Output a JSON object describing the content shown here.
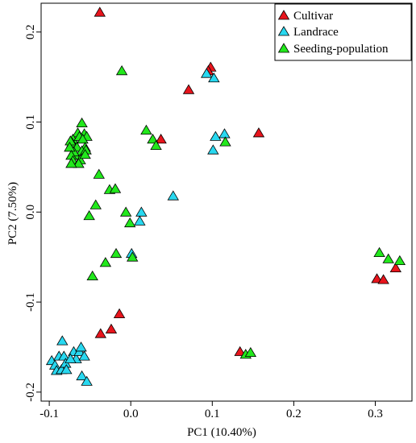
{
  "chart_data": {
    "type": "scatter",
    "xlabel": "PC1 (10.40%)",
    "ylabel": "PC2 (7.50%)",
    "xlim": [
      -0.11,
      0.345
    ],
    "ylim": [
      -0.21,
      0.232
    ],
    "xticks": [
      "-0.1",
      "0.0",
      "0.1",
      "0.2",
      "0.3"
    ],
    "yticks": [
      "-0.2",
      "-0.1",
      "0.0",
      "0.1",
      "0.2"
    ],
    "grid": false,
    "legend_position": "top-right",
    "marker": "triangle",
    "series": [
      {
        "name": "Cultivar",
        "color": "#e8141c",
        "points": [
          [
            -0.038,
            0.222
          ],
          [
            0.098,
            0.161
          ],
          [
            0.095,
            0.157
          ],
          [
            0.071,
            0.136
          ],
          [
            0.157,
            0.088
          ],
          [
            0.037,
            0.081
          ],
          [
            0.302,
            -0.074
          ],
          [
            0.31,
            -0.075
          ],
          [
            0.325,
            -0.062
          ],
          [
            -0.014,
            -0.113
          ],
          [
            -0.024,
            -0.13
          ],
          [
            -0.037,
            -0.135
          ],
          [
            0.134,
            -0.155
          ]
        ]
      },
      {
        "name": "Landrace",
        "color": "#28d8f0",
        "points": [
          [
            0.093,
            0.154
          ],
          [
            0.102,
            0.149
          ],
          [
            0.115,
            0.087
          ],
          [
            0.104,
            0.084
          ],
          [
            0.101,
            0.069
          ],
          [
            0.052,
            0.018
          ],
          [
            0.013,
            0.0
          ],
          [
            0.011,
            -0.01
          ],
          [
            0.001,
            -0.046
          ],
          [
            -0.084,
            -0.143
          ],
          [
            -0.097,
            -0.165
          ],
          [
            -0.093,
            -0.17
          ],
          [
            -0.091,
            -0.176
          ],
          [
            -0.088,
            -0.16
          ],
          [
            -0.085,
            -0.175
          ],
          [
            -0.082,
            -0.16
          ],
          [
            -0.08,
            -0.168
          ],
          [
            -0.079,
            -0.175
          ],
          [
            -0.07,
            -0.155
          ],
          [
            -0.067,
            -0.163
          ],
          [
            -0.063,
            -0.155
          ],
          [
            -0.061,
            -0.15
          ],
          [
            -0.057,
            -0.16
          ],
          [
            -0.06,
            -0.182
          ],
          [
            -0.054,
            -0.188
          ],
          [
            -0.074,
            -0.163
          ]
        ]
      },
      {
        "name": "Seeding-population",
        "color": "#22e81c",
        "points": [
          [
            -0.011,
            0.157
          ],
          [
            -0.06,
            0.099
          ],
          [
            -0.065,
            0.088
          ],
          [
            -0.057,
            0.087
          ],
          [
            -0.071,
            0.081
          ],
          [
            -0.054,
            0.084
          ],
          [
            -0.063,
            0.084
          ],
          [
            -0.059,
            0.081
          ],
          [
            -0.072,
            0.077
          ],
          [
            -0.074,
            0.079
          ],
          [
            -0.056,
            0.072
          ],
          [
            -0.066,
            0.072
          ],
          [
            -0.06,
            0.068
          ],
          [
            -0.068,
            0.063
          ],
          [
            -0.07,
            0.067
          ],
          [
            -0.075,
            0.072
          ],
          [
            -0.073,
            0.063
          ],
          [
            -0.071,
            0.057
          ],
          [
            -0.062,
            0.058
          ],
          [
            -0.055,
            0.069
          ],
          [
            -0.056,
            0.064
          ],
          [
            -0.064,
            0.054
          ],
          [
            -0.073,
            0.054
          ],
          [
            0.019,
            0.091
          ],
          [
            0.027,
            0.081
          ],
          [
            0.031,
            0.074
          ],
          [
            0.116,
            0.078
          ],
          [
            -0.039,
            0.042
          ],
          [
            -0.026,
            0.025
          ],
          [
            -0.019,
            0.026
          ],
          [
            -0.043,
            0.008
          ],
          [
            -0.051,
            -0.004
          ],
          [
            -0.006,
            0.0
          ],
          [
            -0.001,
            -0.012
          ],
          [
            -0.018,
            -0.046
          ],
          [
            -0.031,
            -0.056
          ],
          [
            0.002,
            -0.05
          ],
          [
            -0.047,
            -0.071
          ],
          [
            0.305,
            -0.045
          ],
          [
            0.316,
            -0.052
          ],
          [
            0.33,
            -0.054
          ],
          [
            0.141,
            -0.158
          ],
          [
            0.147,
            -0.156
          ]
        ]
      }
    ]
  }
}
